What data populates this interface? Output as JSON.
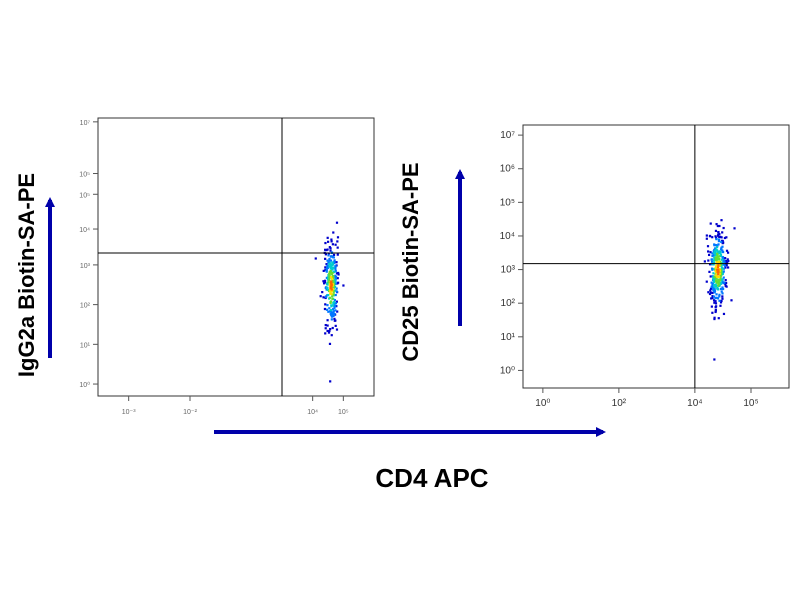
{
  "figure": {
    "y_label_left": "IgG2a Biotin-SA-PE",
    "y_label_right": "CD25 Biotin-SA-PE",
    "x_label": "CD4 APC",
    "arrow_color": "#0000aa"
  },
  "chart_data": [
    {
      "type": "scatter",
      "title": "",
      "xlabel": "CD4 APC",
      "ylabel": "IgG2a Biotin-SA-PE",
      "x_scale": "log",
      "y_scale": "log",
      "xlim": [
        0.001,
        1000000
      ],
      "ylim": [
        0.5,
        5000000
      ],
      "x_ticks": [
        "10⁻³",
        "10⁻²",
        "10⁴",
        "10⁵"
      ],
      "y_ticks": [
        "10⁷",
        "10⁵",
        "10⁵",
        "10⁴",
        "10³",
        "10²",
        "10¹",
        "10⁰"
      ],
      "quadrant_gate": {
        "x": 1000,
        "y": 2000
      },
      "population": {
        "center_x": 40000,
        "center_y": 300,
        "x_spread_decades": 0.12,
        "y_spread_decades": 0.55
      },
      "density_colors": [
        "#0000cc",
        "#0077ff",
        "#00cccc",
        "#66dd33",
        "#ffdd00",
        "#ff6600"
      ]
    },
    {
      "type": "scatter",
      "title": "",
      "xlabel": "CD4 APC",
      "ylabel": "CD25 Biotin-SA-PE",
      "x_scale": "log",
      "y_scale": "log",
      "xlim": [
        0.3,
        3000000
      ],
      "ylim": [
        0.3,
        20000000
      ],
      "x_ticks": [
        "10⁰",
        "10²",
        "10⁴",
        "10⁵"
      ],
      "y_ticks": [
        "10⁷",
        "10⁶",
        "10⁵",
        "10⁴",
        "10³",
        "10²",
        "10¹",
        "10⁰"
      ],
      "quadrant_gate": {
        "x": 10000,
        "y": 1500
      },
      "population": {
        "center_x": 40000,
        "center_y": 1000,
        "x_spread_decades": 0.12,
        "y_spread_decades": 0.6
      },
      "density_colors": [
        "#0000cc",
        "#0077ff",
        "#00cccc",
        "#66dd33",
        "#ffdd00",
        "#ff6600"
      ]
    }
  ]
}
